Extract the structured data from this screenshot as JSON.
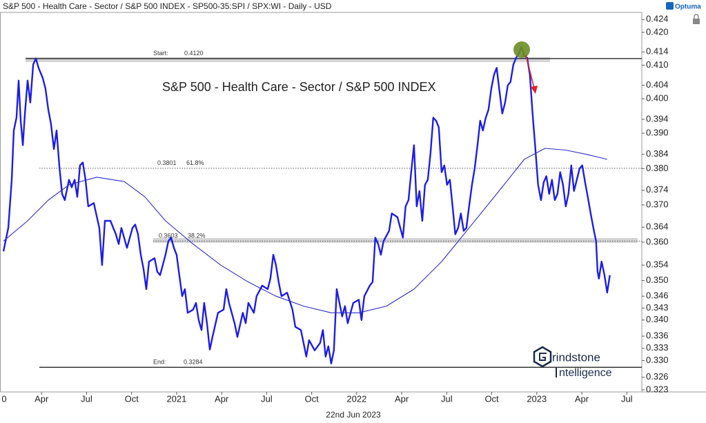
{
  "chart_data": {
    "type": "line",
    "title": "S&P 500 - Health Care - Sector / S&P 500 INDEX - SP500-35:SPI / SPX:WI - Daily - USD",
    "annotation": "S&P 500 - Health Care - Sector / S&P 500 INDEX",
    "date_label": "22nd Jun 2023",
    "brand": "Optuma",
    "logo": [
      "rindstone",
      "ntelligence"
    ],
    "log_scale": true,
    "grid": false,
    "xlim": [
      0.23,
      43.0
    ],
    "ylim": [
      0.3225,
      0.4262
    ],
    "xticks": [
      0,
      {
        "value": 3,
        "label": "Apr"
      },
      {
        "value": 6,
        "label": "Jul"
      },
      {
        "value": 9,
        "label": "Oct"
      },
      {
        "value": 12,
        "label": "2021"
      },
      {
        "value": 15,
        "label": "Apr"
      },
      {
        "value": 18,
        "label": "Jul"
      },
      {
        "value": 21,
        "label": "Oct"
      },
      {
        "value": 24,
        "label": "2022"
      },
      {
        "value": 27,
        "label": "Apr"
      },
      {
        "value": 30,
        "label": "Jul"
      },
      {
        "value": 33,
        "label": "Oct"
      },
      {
        "value": 36,
        "label": "2023"
      },
      {
        "value": 39,
        "label": "Apr"
      },
      {
        "value": 42,
        "label": "Jul"
      }
    ],
    "yticks": [
      0.424,
      {
        "value": 0.42,
        "label": "0.420"
      },
      0.414,
      {
        "value": 0.41,
        "label": "0.410"
      },
      0.404,
      {
        "value": 0.4,
        "label": "0.400"
      },
      0.394,
      {
        "value": 0.39,
        "label": "0.390"
      },
      0.384,
      {
        "value": 0.38,
        "label": "0.380"
      },
      0.374,
      {
        "value": 0.37,
        "label": "0.370"
      },
      0.364,
      {
        "value": 0.36,
        "label": "0.360"
      },
      0.354,
      {
        "value": 0.35,
        "label": "0.350"
      },
      0.346,
      0.343,
      {
        "value": 0.34,
        "label": "0.340"
      },
      0.336,
      0.333,
      {
        "value": 0.33,
        "label": "0.330"
      },
      0.326,
      0.323
    ],
    "levels": [
      {
        "label": "Start:",
        "value": 0.412,
        "value_label": "0.4120",
        "style": "solid"
      },
      {
        "value": 0.3801,
        "value_label": "0.3801",
        "ratio_label": "61.8%",
        "style": "dotted"
      },
      {
        "value": 0.3603,
        "value_label": "0.3603",
        "ratio_label": "38.2%",
        "style": "dotted"
      },
      {
        "label": "End:",
        "value": 0.3284,
        "value_label": "0.3284",
        "style": "solid"
      }
    ],
    "series": [
      {
        "color": "#1c1ce6",
        "width": 2.4,
        "x": [
          0.46,
          0.78,
          1.01,
          1.15,
          1.33,
          1.47,
          1.61,
          1.75,
          1.89,
          2.07,
          2.25,
          2.44,
          2.62,
          2.8,
          3.08,
          3.26,
          3.45,
          3.63,
          3.82,
          4.0,
          4.18,
          4.37,
          4.55,
          4.83,
          5.01,
          5.2,
          5.38,
          5.56,
          5.75,
          5.93,
          6.11,
          6.48,
          6.85,
          7.03,
          7.22,
          7.59,
          7.95,
          8.14,
          8.32,
          8.69,
          9.06,
          9.24,
          9.43,
          9.61,
          9.79,
          9.98,
          10.16,
          10.53,
          10.71,
          10.9,
          11.26,
          11.45,
          11.63,
          11.82,
          12.0,
          12.18,
          12.37,
          12.55,
          12.74,
          13.1,
          13.29,
          13.47,
          13.66,
          13.84,
          14.02,
          14.21,
          14.39,
          14.76,
          15.13,
          15.31,
          15.49,
          15.86,
          16.05,
          16.41,
          16.6,
          16.78,
          17.15,
          17.33,
          17.7,
          18.07,
          18.25,
          18.44,
          18.62,
          18.8,
          18.99,
          19.36,
          19.72,
          19.91,
          20.28,
          20.46,
          20.64,
          20.83,
          21.2,
          21.56,
          21.75,
          21.93,
          22.11,
          22.3,
          22.48,
          22.67,
          22.85,
          23.03,
          23.22,
          23.4,
          23.77,
          24.14,
          24.32,
          24.51,
          24.87,
          25.06,
          25.24,
          25.43,
          25.61,
          25.79,
          26.16,
          26.34,
          26.71,
          27.08,
          27.26,
          27.45,
          27.63,
          27.82,
          28.0,
          28.18,
          28.37,
          28.55,
          28.74,
          28.92,
          29.1,
          29.29,
          29.47,
          29.66,
          29.84,
          30.02,
          30.21,
          30.39,
          30.57,
          30.76,
          30.94,
          31.13,
          31.31,
          31.49,
          31.68,
          31.86,
          32.05,
          32.23,
          32.41,
          32.6,
          32.78,
          32.97,
          33.15,
          33.33,
          33.52,
          33.7,
          33.89,
          34.07,
          34.25,
          34.44,
          34.62,
          34.8,
          34.99,
          35.17,
          35.36,
          35.54,
          35.72,
          35.91,
          36.09,
          36.28,
          36.46,
          36.64,
          36.83,
          37.01,
          37.2,
          37.38,
          37.56,
          37.75,
          37.93,
          38.11,
          38.3,
          38.48,
          38.67,
          38.85,
          39.03,
          39.22,
          39.4,
          39.59,
          39.77,
          39.95,
          40.05,
          40.14,
          40.32,
          40.51,
          40.69,
          40.87
        ],
        "values": [
          0.3576,
          0.3638,
          0.3769,
          0.3908,
          0.3945,
          0.4054,
          0.3936,
          0.3866,
          0.3957,
          0.4054,
          0.3989,
          0.4102,
          0.412,
          0.4092,
          0.4061,
          0.403,
          0.3968,
          0.3927,
          0.3855,
          0.3908,
          0.3809,
          0.373,
          0.3713,
          0.3769,
          0.3748,
          0.3769,
          0.3722,
          0.3809,
          0.3817,
          0.3769,
          0.3696,
          0.3705,
          0.3638,
          0.354,
          0.3657,
          0.3657,
          0.3621,
          0.3595,
          0.3638,
          0.3585,
          0.3638,
          0.3647,
          0.3621,
          0.3567,
          0.3531,
          0.3478,
          0.3549,
          0.3558,
          0.3523,
          0.3514,
          0.3567,
          0.3603,
          0.3612,
          0.3585,
          0.3567,
          0.3514,
          0.346,
          0.3478,
          0.3418,
          0.3426,
          0.3443,
          0.34,
          0.3375,
          0.3443,
          0.3392,
          0.3327,
          0.3358,
          0.3418,
          0.3426,
          0.3478,
          0.3443,
          0.3392,
          0.3358,
          0.3418,
          0.3392,
          0.3443,
          0.3418,
          0.346,
          0.3487,
          0.3478,
          0.3505,
          0.3567,
          0.354,
          0.3496,
          0.346,
          0.3469,
          0.3426,
          0.3383,
          0.3375,
          0.3343,
          0.331,
          0.335,
          0.3325,
          0.3343,
          0.3375,
          0.331,
          0.3335,
          0.3293,
          0.3325,
          0.3478,
          0.3443,
          0.3409,
          0.3435,
          0.3392,
          0.3443,
          0.3451,
          0.34,
          0.346,
          0.3487,
          0.3496,
          0.3612,
          0.3595,
          0.3567,
          0.3603,
          0.363,
          0.3677,
          0.3667,
          0.3612,
          0.3696,
          0.3713,
          0.379,
          0.3866,
          0.3696,
          0.3738,
          0.3657,
          0.3755,
          0.3769,
          0.3843,
          0.3945,
          0.3936,
          0.3917,
          0.379,
          0.3809,
          0.3755,
          0.3769,
          0.3696,
          0.3621,
          0.3638,
          0.3677,
          0.363,
          0.3638,
          0.3696,
          0.3755,
          0.38,
          0.3866,
          0.3936,
          0.3908,
          0.3945,
          0.3968,
          0.403,
          0.4071,
          0.4092,
          0.402,
          0.3957,
          0.3989,
          0.404,
          0.405,
          0.4102,
          0.4122,
          0.4136,
          0.4155,
          0.4128,
          0.4122,
          0.4071,
          0.3957,
          0.3855,
          0.3755,
          0.3713,
          0.3762,
          0.3779,
          0.373,
          0.3769,
          0.3713,
          0.373,
          0.379,
          0.3755,
          0.3696,
          0.373,
          0.3809,
          0.3738,
          0.3769,
          0.38,
          0.3809,
          0.3762,
          0.3722,
          0.3677,
          0.3638,
          0.3603,
          0.3523,
          0.3505,
          0.3549,
          0.3514,
          0.3469,
          0.3514
        ]
      },
      {
        "color": "#2b2bc8",
        "width": 1.1,
        "x": [
          0.46,
          2.07,
          3.45,
          4.83,
          6.67,
          8.51,
          9.89,
          11.26,
          13.1,
          14.94,
          16.78,
          18.62,
          20.46,
          22.3,
          24.14,
          25.98,
          27.82,
          29.66,
          31.49,
          33.33,
          35.17,
          36.55,
          37.93,
          39.31,
          40.69
        ],
        "values": [
          0.3603,
          0.3657,
          0.3713,
          0.3755,
          0.3776,
          0.3764,
          0.3722,
          0.3657,
          0.3595,
          0.354,
          0.3496,
          0.346,
          0.3435,
          0.3418,
          0.3418,
          0.3435,
          0.3478,
          0.3549,
          0.3638,
          0.373,
          0.3826,
          0.3857,
          0.3852,
          0.384,
          0.3826
        ]
      }
    ]
  }
}
